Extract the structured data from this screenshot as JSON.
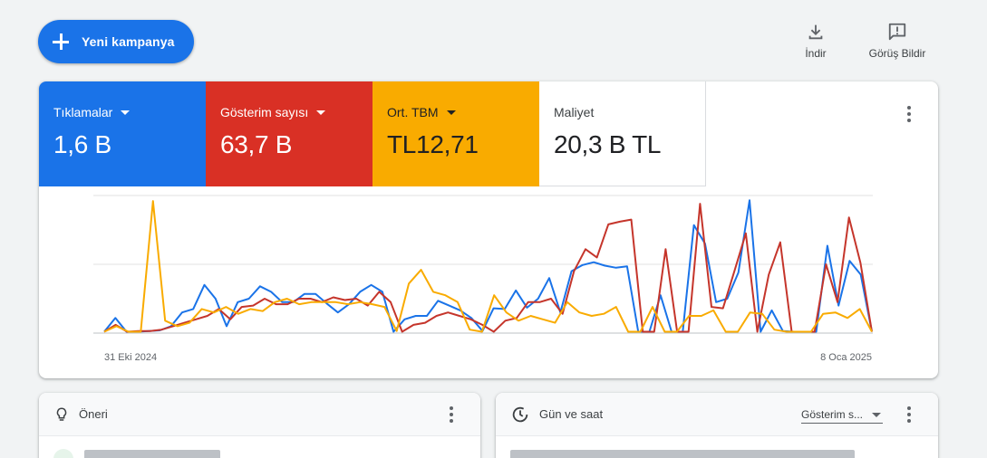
{
  "header": {
    "new_campaign_label": "Yeni kampanya",
    "download_label": "İndir",
    "feedback_label": "Görüş Bildir"
  },
  "metrics": [
    {
      "label": "Tıklamalar",
      "value": "1,6 B",
      "color": "#1a73e8"
    },
    {
      "label": "Gösterim sayısı",
      "value": "63,7 B",
      "color": "#d93025"
    },
    {
      "label": "Ort. TBM",
      "value": "TL12,71",
      "color": "#f9ab00"
    },
    {
      "label": "Maliyet",
      "value": "20,3 B TL",
      "color": "#ffffff"
    }
  ],
  "chart_data": {
    "type": "line",
    "x_start_label": "31 Eki 2024",
    "x_end_label": "8 Oca 2025",
    "ylim": [
      0,
      2
    ],
    "grid": true,
    "series": [
      {
        "color": "#1a73e8",
        "values": [
          0.02,
          0.22,
          0.02,
          0.02,
          0.03,
          0.04,
          0.1,
          0.3,
          0.35,
          0.7,
          0.5,
          0.1,
          0.45,
          0.5,
          0.68,
          0.6,
          0.45,
          0.45,
          0.57,
          0.57,
          0.43,
          0.3,
          0.42,
          0.6,
          0.7,
          0.6,
          0.02,
          0.2,
          0.25,
          0.25,
          0.47,
          0.4,
          0.33,
          0.22,
          0.03,
          0.36,
          0.35,
          0.62,
          0.37,
          0.5,
          0.8,
          0.3,
          0.9,
          0.99,
          1.03,
          0.98,
          0.95,
          0.97,
          0.02,
          0.02,
          0.55,
          0.02,
          0.02,
          1.57,
          1.3,
          0.45,
          0.5,
          0.88,
          1.93,
          0.02,
          0.33,
          0.03,
          0.02,
          0.02,
          0.02,
          1.27,
          0.4,
          1.05,
          0.85,
          0.02
        ]
      },
      {
        "color": "#c5352b",
        "values": [
          0.02,
          0.12,
          0.02,
          0.03,
          0.03,
          0.05,
          0.1,
          0.15,
          0.2,
          0.25,
          0.35,
          0.2,
          0.38,
          0.4,
          0.5,
          0.42,
          0.42,
          0.5,
          0.5,
          0.45,
          0.52,
          0.48,
          0.5,
          0.4,
          0.6,
          0.45,
          0.02,
          0.12,
          0.15,
          0.25,
          0.3,
          0.25,
          0.2,
          0.12,
          0.02,
          0.18,
          0.22,
          0.45,
          0.45,
          0.5,
          0.28,
          0.9,
          1.22,
          1.1,
          1.58,
          1.62,
          1.65,
          0.02,
          0.02,
          1.22,
          0.02,
          0.02,
          1.88,
          0.38,
          0.36,
          0.9,
          1.45,
          0.02,
          0.85,
          1.32,
          0.02,
          0.02,
          0.02,
          1.0,
          0.45,
          1.68,
          1.02,
          0.02
        ]
      },
      {
        "color": "#f9ab00",
        "values": [
          0.02,
          0.1,
          0.02,
          0.02,
          1.92,
          0.18,
          0.1,
          0.15,
          0.35,
          0.3,
          0.38,
          0.28,
          0.35,
          0.32,
          0.45,
          0.5,
          0.42,
          0.45,
          0.45,
          0.45,
          0.42,
          0.45,
          0.42,
          0.38,
          0.03,
          0.72,
          0.92,
          0.6,
          0.55,
          0.45,
          0.05,
          0.02,
          0.55,
          0.3,
          0.18,
          0.25,
          0.2,
          0.15,
          0.45,
          0.3,
          0.25,
          0.28,
          0.38,
          0.02,
          0.02,
          0.38,
          0.02,
          0.02,
          0.25,
          0.25,
          0.33,
          0.02,
          0.02,
          0.3,
          0.28,
          0.05,
          0.02,
          0.02,
          0.02,
          0.28,
          0.3,
          0.22,
          0.35,
          0.02
        ]
      }
    ]
  },
  "reco_card": {
    "title": "Öneri"
  },
  "time_card": {
    "title": "Gün ve saat",
    "select_value": "Gösterim s..."
  }
}
